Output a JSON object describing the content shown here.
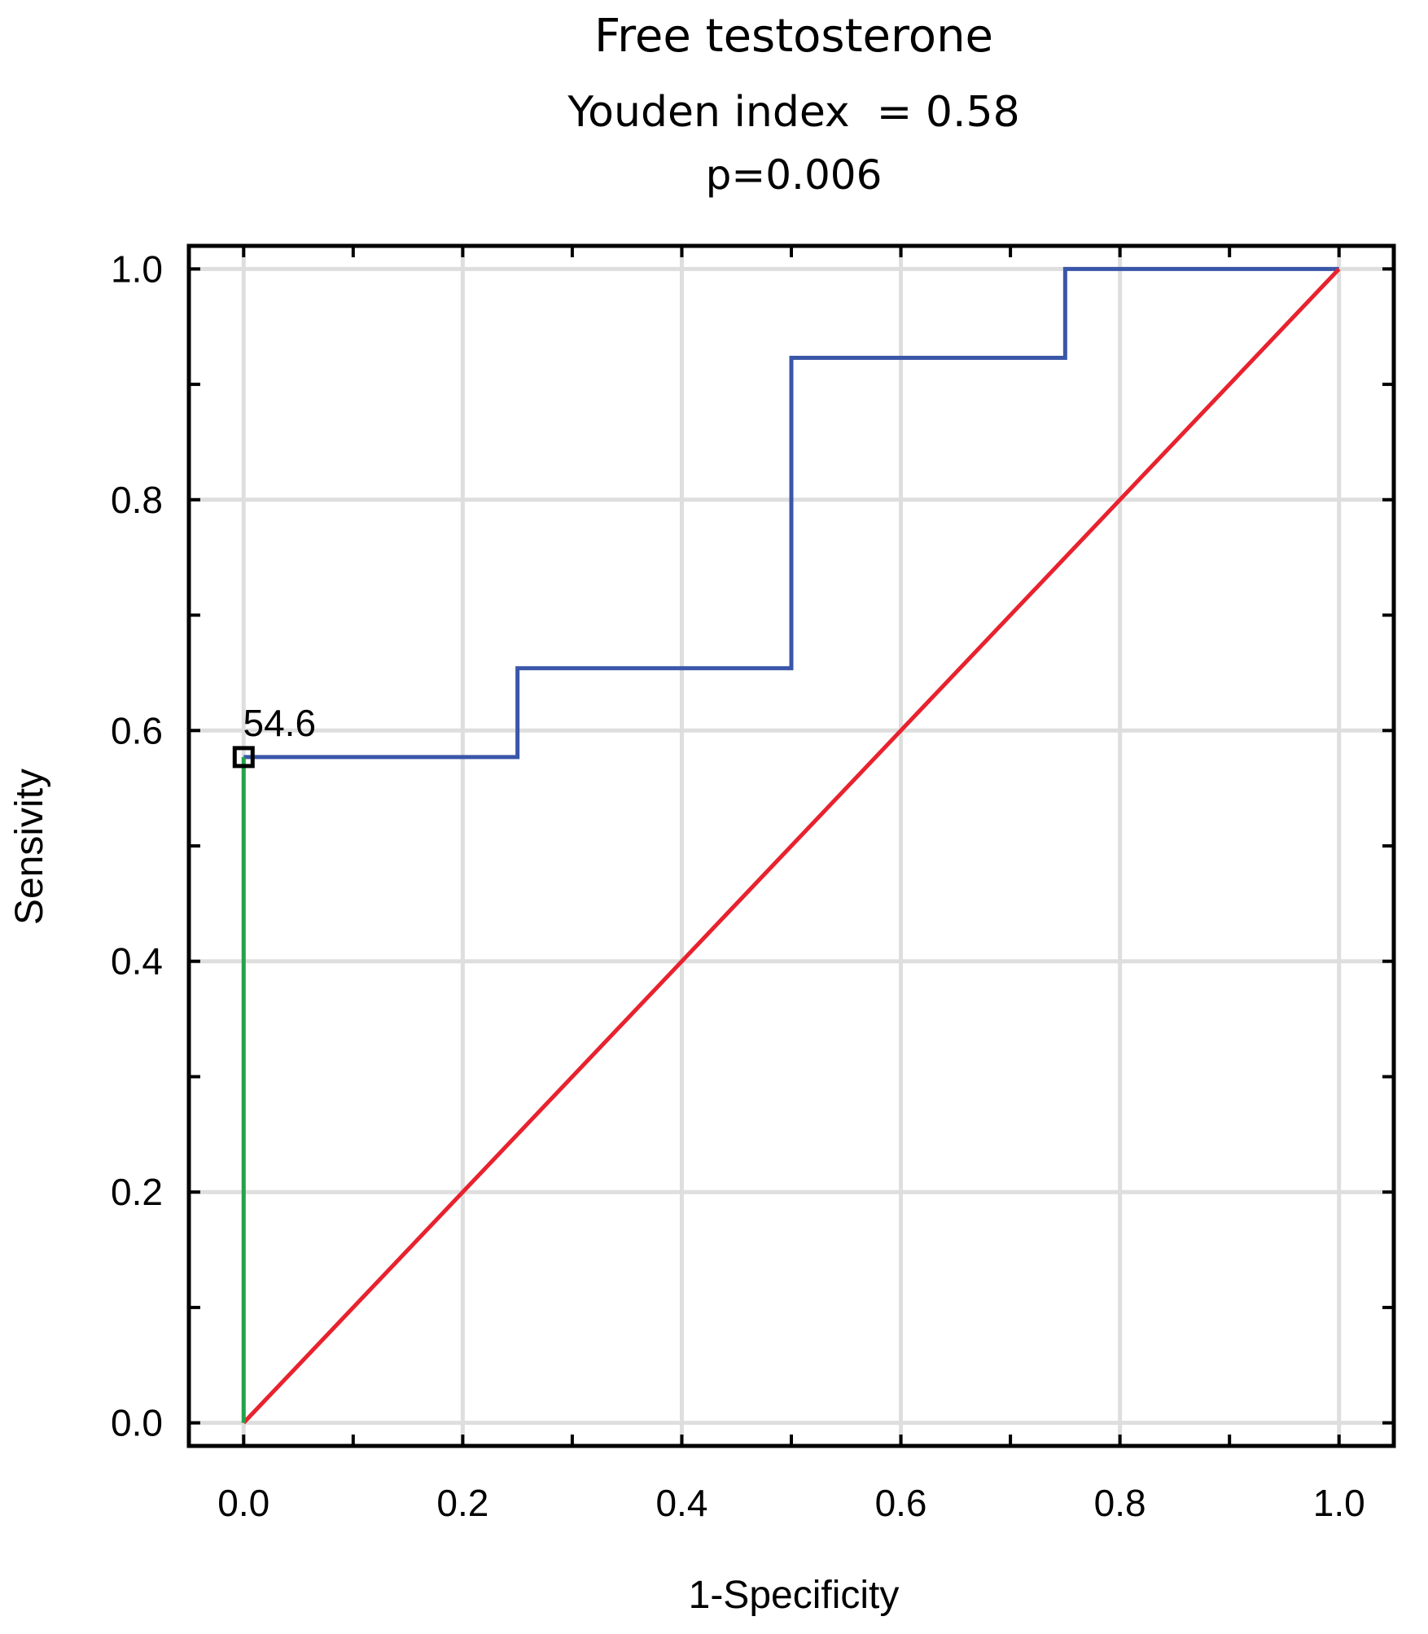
{
  "chart_data": {
    "type": "line",
    "title": "Free testosterone",
    "subtitle": "Youden index  = 0.58",
    "annotation_p": "p=0.006",
    "xlabel": "1-Specificity",
    "ylabel": "Sensivity",
    "xlim": [
      -0.05,
      1.05
    ],
    "ylim": [
      -0.02,
      1.02
    ],
    "x_ticks": [
      0.0,
      0.2,
      0.4,
      0.6,
      0.8,
      1.0
    ],
    "x_tick_labels": [
      "0.0",
      "0.2",
      "0.4",
      "0.6",
      "0.8",
      "1.0"
    ],
    "y_ticks": [
      0.0,
      0.2,
      0.4,
      0.6,
      0.8,
      1.0
    ],
    "y_tick_labels": [
      "0.0",
      "0.2",
      "0.4",
      "0.6",
      "0.8",
      "1.0"
    ],
    "minor_ticks_step": 0.1,
    "grid": true,
    "series": [
      {
        "name": "ROC curve",
        "color": "#3a56a8",
        "x": [
          0.0,
          0.25,
          0.25,
          0.5,
          0.5,
          0.75,
          0.75,
          1.0
        ],
        "y": [
          0.577,
          0.577,
          0.654,
          0.654,
          0.923,
          0.923,
          1.0,
          1.0
        ]
      },
      {
        "name": "Reference line",
        "color": "#e8222e",
        "x": [
          0.0,
          1.0
        ],
        "y": [
          0.0,
          1.0
        ]
      },
      {
        "name": "Youden index line",
        "color": "#22a34a",
        "x": [
          0.0,
          0.0
        ],
        "y": [
          0.0,
          0.577
        ]
      }
    ],
    "cutoff_point": {
      "x": 0.0,
      "y": 0.577,
      "label": "54.6"
    },
    "colors": {
      "title": "#000000",
      "p_value": "#e8222e",
      "grid": "#dedede",
      "axis": "#000000"
    }
  }
}
